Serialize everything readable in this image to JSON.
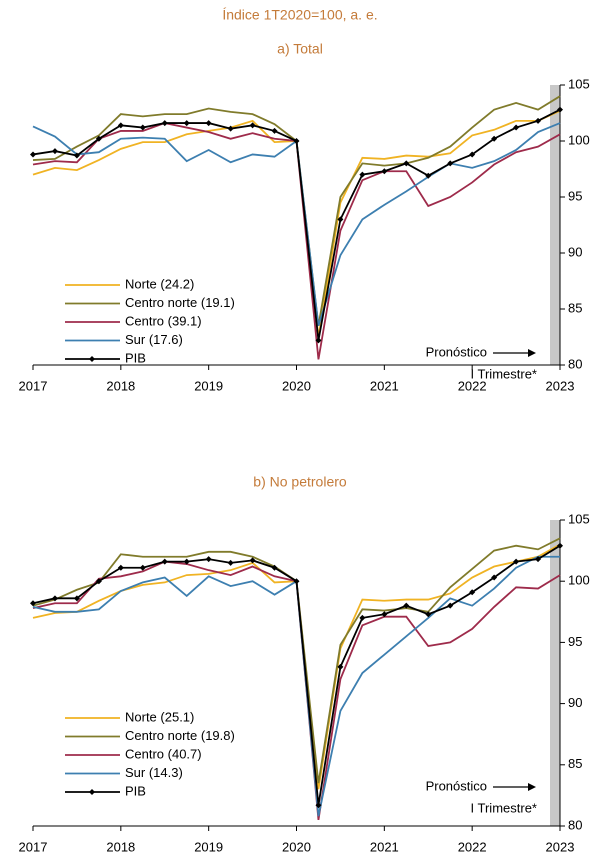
{
  "header": "Índice 1T2020=100, a. e.",
  "chart_data": [
    {
      "type": "line",
      "title": "a) Total",
      "x": [
        2017,
        2017.25,
        2017.5,
        2017.75,
        2018,
        2018.25,
        2018.5,
        2018.75,
        2019,
        2019.25,
        2019.5,
        2019.75,
        2020,
        2020.25,
        2020.5,
        2020.75,
        2021,
        2021.25,
        2021.5,
        2021.75,
        2022,
        2022.25,
        2022.5,
        2022.75,
        2023
      ],
      "xlim": [
        2017,
        2023
      ],
      "xticks": [
        2017,
        2018,
        2019,
        2020,
        2021,
        2022,
        2023
      ],
      "ylim": [
        80,
        105
      ],
      "yticks": [
        80,
        85,
        90,
        95,
        100,
        105
      ],
      "annotations": [
        "Pronóstico",
        "I Trimestre*"
      ],
      "series": [
        {
          "name": "Norte (24.2)",
          "color": "#f0b323",
          "values": [
            97.0,
            97.6,
            97.4,
            98.3,
            99.3,
            99.9,
            99.9,
            100.6,
            100.9,
            101.2,
            101.8,
            99.9,
            100.0,
            82.5,
            94.5,
            98.5,
            98.4,
            98.7,
            98.6,
            98.9,
            100.5,
            101.0,
            101.8,
            101.8,
            102.7
          ]
        },
        {
          "name": "Centro norte (19.1)",
          "color": "#807b2b",
          "values": [
            98.3,
            98.4,
            99.5,
            100.5,
            102.4,
            102.2,
            102.4,
            102.4,
            102.9,
            102.6,
            102.4,
            101.5,
            100.0,
            83.5,
            95.0,
            98.0,
            97.8,
            98.0,
            98.5,
            99.5,
            101.2,
            102.8,
            103.4,
            102.8,
            104.0
          ]
        },
        {
          "name": "Centro (39.1)",
          "color": "#9e2b4b",
          "values": [
            97.9,
            98.2,
            98.1,
            100.2,
            100.9,
            100.9,
            101.6,
            101.2,
            100.8,
            100.2,
            100.7,
            100.2,
            100.0,
            80.5,
            92.0,
            96.5,
            97.3,
            97.3,
            94.2,
            95.0,
            96.3,
            97.9,
            99.0,
            99.5,
            100.6
          ]
        },
        {
          "name": "Sur (17.6)",
          "color": "#3d7fb0",
          "values": [
            101.3,
            100.4,
            98.8,
            99.0,
            100.2,
            100.3,
            100.2,
            98.2,
            99.2,
            98.1,
            98.8,
            98.6,
            100.0,
            83.5,
            89.8,
            93.0,
            94.3,
            95.5,
            96.8,
            98.0,
            97.6,
            98.2,
            99.2,
            100.8,
            101.6
          ]
        },
        {
          "name": "PIB",
          "color": "#000000",
          "marker": "diamond",
          "values": [
            98.8,
            99.1,
            98.7,
            100.2,
            101.4,
            101.2,
            101.6,
            101.6,
            101.6,
            101.1,
            101.4,
            100.9,
            100.0,
            82.2,
            93.0,
            97.0,
            97.3,
            98.0,
            96.9,
            98.0,
            98.8,
            100.2,
            101.2,
            101.8,
            102.8
          ]
        }
      ]
    },
    {
      "type": "line",
      "title": "b) No petrolero",
      "x": [
        2017,
        2017.25,
        2017.5,
        2017.75,
        2018,
        2018.25,
        2018.5,
        2018.75,
        2019,
        2019.25,
        2019.5,
        2019.75,
        2020,
        2020.25,
        2020.5,
        2020.75,
        2021,
        2021.25,
        2021.5,
        2021.75,
        2022,
        2022.25,
        2022.5,
        2022.75,
        2023
      ],
      "xlim": [
        2017,
        2023
      ],
      "xticks": [
        2017,
        2018,
        2019,
        2020,
        2021,
        2022,
        2023
      ],
      "ylim": [
        80,
        105
      ],
      "yticks": [
        80,
        85,
        90,
        95,
        100,
        105
      ],
      "annotations": [
        "Pronóstico",
        "I Trimestre*"
      ],
      "series": [
        {
          "name": "Norte (25.1)",
          "color": "#f0b323",
          "values": [
            97.0,
            97.4,
            97.5,
            98.4,
            99.2,
            99.7,
            99.9,
            100.5,
            100.6,
            100.9,
            101.5,
            99.9,
            100.0,
            83.0,
            94.5,
            98.5,
            98.4,
            98.5,
            98.5,
            99.0,
            100.3,
            101.2,
            101.6,
            102.0,
            103.0
          ]
        },
        {
          "name": "Centro norte (19.8)",
          "color": "#807b2b",
          "values": [
            98.0,
            98.5,
            99.3,
            99.9,
            102.2,
            102.0,
            102.0,
            102.0,
            102.4,
            102.4,
            102.0,
            101.2,
            100.0,
            83.5,
            94.8,
            97.7,
            97.6,
            97.8,
            97.5,
            99.5,
            101.0,
            102.5,
            102.9,
            102.6,
            103.5
          ]
        },
        {
          "name": "Centro (40.7)",
          "color": "#9e2b4b",
          "values": [
            97.8,
            98.2,
            98.2,
            100.2,
            100.4,
            100.8,
            101.6,
            101.4,
            100.9,
            100.5,
            101.2,
            100.4,
            100.0,
            80.5,
            92.0,
            96.4,
            97.1,
            97.1,
            94.7,
            95.0,
            96.1,
            97.9,
            99.5,
            99.4,
            100.5
          ]
        },
        {
          "name": "Sur (14.3)",
          "color": "#3d7fb0",
          "values": [
            97.9,
            97.5,
            97.5,
            97.7,
            99.2,
            99.9,
            100.3,
            98.8,
            100.4,
            99.6,
            100.0,
            98.9,
            100.0,
            80.8,
            89.4,
            92.5,
            94.0,
            95.5,
            97.0,
            98.6,
            98.0,
            99.4,
            101.1,
            102.0,
            102.0
          ]
        },
        {
          "name": "PIB",
          "color": "#000000",
          "marker": "diamond",
          "values": [
            98.2,
            98.6,
            98.6,
            100.0,
            101.1,
            101.1,
            101.6,
            101.6,
            101.8,
            101.5,
            101.7,
            101.1,
            100.0,
            81.7,
            93.0,
            97.0,
            97.3,
            98.0,
            97.3,
            98.0,
            99.1,
            100.3,
            101.6,
            101.8,
            102.9
          ]
        }
      ]
    }
  ]
}
